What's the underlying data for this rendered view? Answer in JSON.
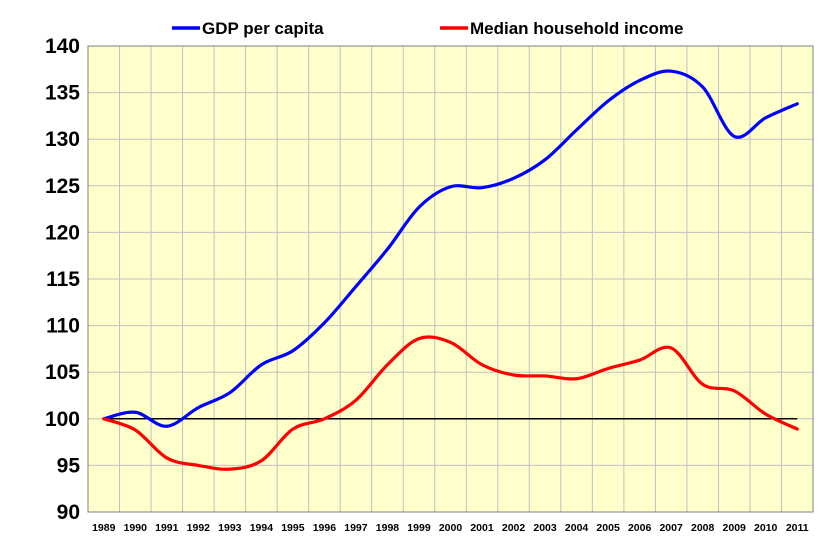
{
  "chart_data": {
    "type": "line",
    "title": "",
    "xlabel": "",
    "ylabel": "",
    "categories": [
      "1989",
      "1990",
      "1991",
      "1992",
      "1993",
      "1994",
      "1995",
      "1996",
      "1997",
      "1998",
      "1999",
      "2000",
      "2001",
      "2002",
      "2003",
      "2004",
      "2005",
      "2006",
      "2007",
      "2008",
      "2009",
      "2010",
      "2011"
    ],
    "ylim": [
      90,
      140
    ],
    "yticks": [
      "90",
      "95",
      "100",
      "105",
      "110",
      "115",
      "120",
      "125",
      "130",
      "135",
      "140"
    ],
    "grid": true,
    "legend_position": "top",
    "reference_line": 100,
    "series": [
      {
        "name": "GDP per capita",
        "color": "#0000ff",
        "values": [
          100.0,
          100.7,
          99.2,
          101.2,
          102.8,
          105.8,
          107.3,
          110.3,
          114.2,
          118.2,
          122.7,
          124.9,
          124.8,
          125.8,
          127.8,
          131.0,
          134.1,
          136.3,
          137.3,
          135.6,
          130.3,
          132.3,
          133.8
        ]
      },
      {
        "name": "Median household income",
        "color": "#ff0000",
        "values": [
          100.0,
          98.8,
          95.8,
          95.0,
          94.6,
          95.5,
          98.9,
          100.0,
          102.0,
          105.8,
          108.6,
          108.2,
          105.8,
          104.7,
          104.6,
          104.3,
          105.4,
          106.3,
          107.6,
          103.7,
          103.0,
          100.5,
          98.9
        ]
      }
    ],
    "colors": {
      "plot_background": "#ffffcc",
      "grid": "#c0c0c0",
      "reference_line": "#000000"
    }
  }
}
